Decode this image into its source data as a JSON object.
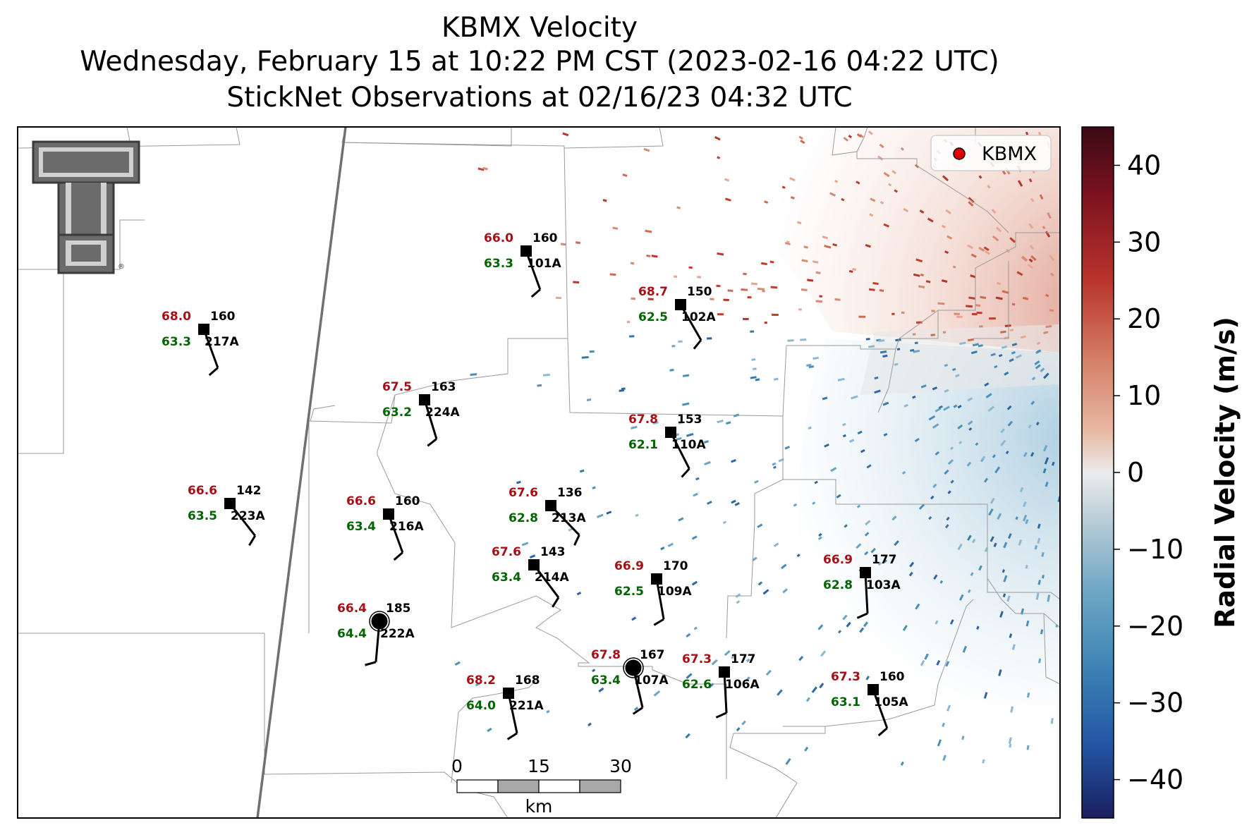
{
  "title": {
    "line1": "KBMX Velocity",
    "line2": "Wednesday, February 15 at 10:22 PM CST (2023-02-16 04:22 UTC)",
    "line3": "StickNet Observations at 02/16/23 04:32 UTC"
  },
  "legend": {
    "label": "KBMX",
    "marker_color": "#e00000"
  },
  "colorbar": {
    "label": "Radial Velocity (m/s)",
    "range": [
      -45,
      45
    ],
    "ticks": [
      "40",
      "30",
      "20",
      "10",
      "0",
      "−10",
      "−20",
      "−30",
      "−40"
    ],
    "colors": [
      "#3a0a14",
      "#7d1220",
      "#b8322c",
      "#d37b62",
      "#e7b8a4",
      "#ececec",
      "#b9ccd7",
      "#6fa8c4",
      "#3d84b5",
      "#2457a6",
      "#1a1f60"
    ]
  },
  "scalebar": {
    "labels": [
      "0",
      "15",
      "30"
    ],
    "unit": "km"
  },
  "stations": [
    {
      "id": "101A",
      "temp": "66.0",
      "dew": "63.3",
      "dir": "160",
      "marker": "square"
    },
    {
      "id": "102A",
      "temp": "68.7",
      "dew": "62.5",
      "dir": "150",
      "marker": "square"
    },
    {
      "id": "217A",
      "temp": "68.0",
      "dew": "63.3",
      "dir": "160",
      "marker": "square"
    },
    {
      "id": "224A",
      "temp": "67.5",
      "dew": "63.2",
      "dir": "163",
      "marker": "square"
    },
    {
      "id": "110A",
      "temp": "67.8",
      "dew": "62.1",
      "dir": "153",
      "marker": "square"
    },
    {
      "id": "223A",
      "temp": "66.6",
      "dew": "63.5",
      "dir": "142",
      "marker": "square"
    },
    {
      "id": "216A",
      "temp": "66.6",
      "dew": "63.4",
      "dir": "160",
      "marker": "square"
    },
    {
      "id": "213A",
      "temp": "67.6",
      "dew": "62.8",
      "dir": "136",
      "marker": "square"
    },
    {
      "id": "214A",
      "temp": "67.6",
      "dew": "63.4",
      "dir": "143",
      "marker": "square"
    },
    {
      "id": "109A",
      "temp": "66.9",
      "dew": "62.5",
      "dir": "170",
      "marker": "square"
    },
    {
      "id": "103A",
      "temp": "66.9",
      "dew": "62.8",
      "dir": "177",
      "marker": "square"
    },
    {
      "id": "222A",
      "temp": "66.4",
      "dew": "64.4",
      "dir": "185",
      "marker": "circle"
    },
    {
      "id": "107A",
      "temp": "67.8",
      "dew": "63.4",
      "dir": "167",
      "marker": "circle"
    },
    {
      "id": "106A",
      "temp": "67.3",
      "dew": "62.6",
      "dir": "177",
      "marker": "square"
    },
    {
      "id": "221A",
      "temp": "68.2",
      "dew": "64.0",
      "dir": "168",
      "marker": "square"
    },
    {
      "id": "105A",
      "temp": "67.3",
      "dew": "63.1",
      "dir": "160",
      "marker": "square"
    }
  ]
}
